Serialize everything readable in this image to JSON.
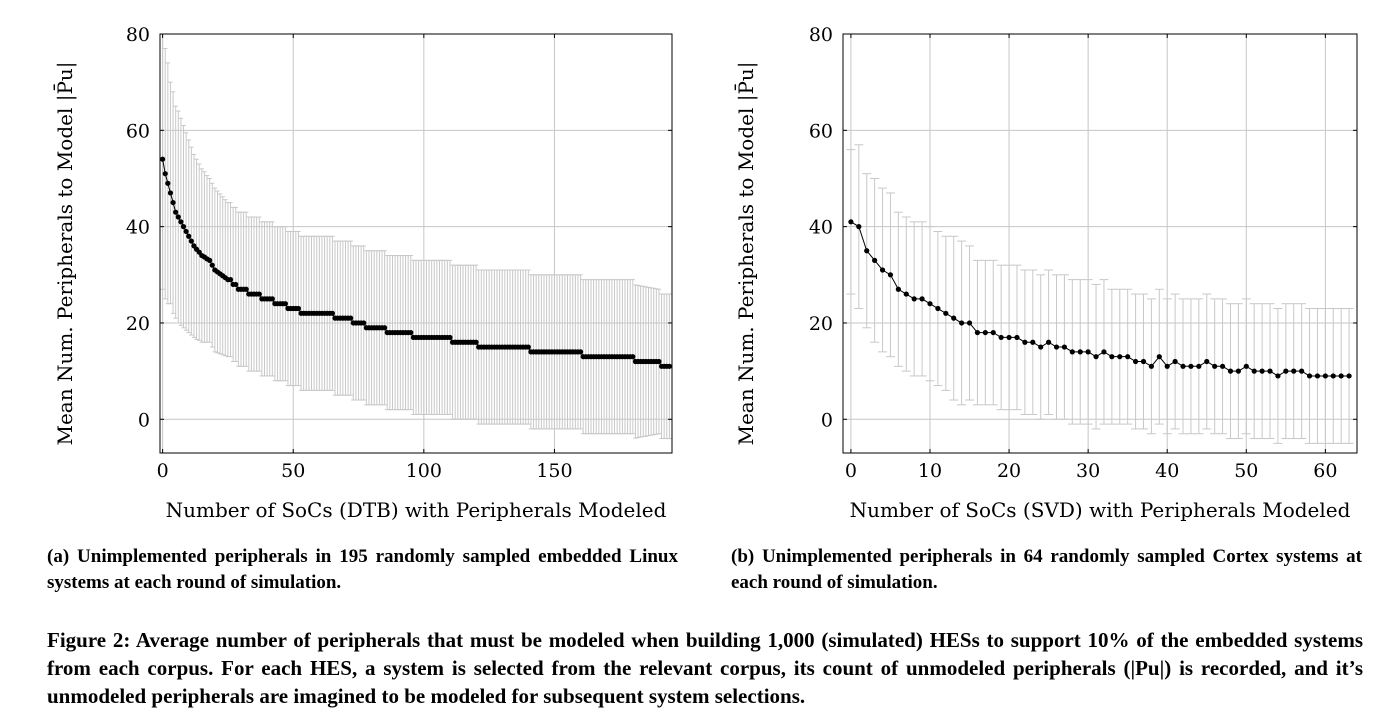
{
  "chart_data": [
    {
      "type": "line",
      "ylabel": "Mean Num. Peripherals to Model |P̄u|",
      "xlabel": "Number of SoCs (DTB) with Peripherals Modeled",
      "xlim": [
        -1,
        195
      ],
      "ylim": [
        -7,
        80
      ],
      "xticks": [
        0,
        50,
        100,
        150
      ],
      "yticks": [
        0,
        20,
        40,
        60,
        80
      ],
      "grid": true,
      "error_bars": true,
      "series_color": "#000000",
      "error_bar_color": "#c8c8c8",
      "keypoints": [
        [
          0,
          54,
          27
        ],
        [
          1,
          51,
          26
        ],
        [
          2,
          49,
          25
        ],
        [
          3,
          47,
          23
        ],
        [
          4,
          45,
          23
        ],
        [
          5,
          43,
          22
        ],
        [
          6,
          42,
          22
        ],
        [
          8,
          40,
          21
        ],
        [
          10,
          38,
          20
        ],
        [
          12,
          36,
          19
        ],
        [
          15,
          34,
          18
        ],
        [
          18,
          33,
          17
        ],
        [
          20,
          31,
          17
        ],
        [
          25,
          29,
          16
        ],
        [
          30,
          27,
          16
        ],
        [
          35,
          26,
          16
        ],
        [
          40,
          25,
          16
        ],
        [
          45,
          24,
          16
        ],
        [
          50,
          23,
          16
        ],
        [
          55,
          22,
          16
        ],
        [
          60,
          22,
          16
        ],
        [
          70,
          21,
          16
        ],
        [
          80,
          19,
          16
        ],
        [
          90,
          18,
          16
        ],
        [
          100,
          17,
          16
        ],
        [
          110,
          16.5,
          16
        ],
        [
          120,
          15.5,
          16
        ],
        [
          130,
          15,
          16
        ],
        [
          140,
          14.5,
          16
        ],
        [
          150,
          14,
          16
        ],
        [
          160,
          13.5,
          16
        ],
        [
          170,
          13,
          16
        ],
        [
          180,
          12.5,
          16
        ],
        [
          190,
          11.5,
          15
        ],
        [
          194,
          11,
          15
        ]
      ],
      "caption": "(a) Unimplemented peripherals in 195 randomly sampled embedded Linux systems at each round of simulation."
    },
    {
      "type": "line",
      "ylabel": "Mean Num. Peripherals to Model |P̄u|",
      "xlabel": "Number of SoCs (SVD) with Peripherals Modeled",
      "xlim": [
        -1,
        64
      ],
      "ylim": [
        -7,
        80
      ],
      "xticks": [
        0,
        10,
        20,
        30,
        40,
        50,
        60
      ],
      "yticks": [
        0,
        20,
        40,
        60,
        80
      ],
      "grid": true,
      "error_bars": true,
      "series_color": "#000000",
      "error_bar_color": "#c8c8c8",
      "x": [
        0,
        1,
        2,
        3,
        4,
        5,
        6,
        7,
        8,
        9,
        10,
        11,
        12,
        13,
        14,
        15,
        16,
        17,
        18,
        19,
        20,
        21,
        22,
        23,
        24,
        25,
        26,
        27,
        28,
        29,
        30,
        31,
        32,
        33,
        34,
        35,
        36,
        37,
        38,
        39,
        40,
        41,
        42,
        43,
        44,
        45,
        46,
        47,
        48,
        49,
        50,
        51,
        52,
        53,
        54,
        55,
        56,
        57,
        58,
        59,
        60,
        61,
        62,
        63
      ],
      "y": [
        41,
        40,
        35,
        33,
        31,
        30,
        27,
        26,
        25,
        25,
        24,
        23,
        22,
        21,
        20,
        20,
        18,
        18,
        18,
        17,
        17,
        17,
        16,
        16,
        15,
        16,
        15,
        15,
        14,
        14,
        14,
        13,
        14,
        13,
        13,
        13,
        12,
        12,
        11,
        13,
        11,
        12,
        11,
        11,
        11,
        12,
        11,
        11,
        10,
        10,
        11,
        10,
        10,
        10,
        9,
        10,
        10,
        10,
        9,
        9,
        9,
        9,
        9,
        9
      ],
      "err": [
        15,
        17,
        16,
        17,
        17,
        17,
        16,
        16,
        16,
        16,
        16,
        16,
        16,
        17,
        17,
        16,
        15,
        15,
        15,
        15,
        15,
        15,
        15,
        15,
        15,
        15,
        15,
        15,
        15,
        15,
        15,
        15,
        15,
        14,
        14,
        14,
        14,
        14,
        14,
        14,
        14,
        14,
        14,
        14,
        14,
        14,
        14,
        14,
        14,
        14,
        14,
        14,
        14,
        14,
        14,
        14,
        14,
        14,
        14,
        14,
        14,
        14,
        14,
        14
      ],
      "caption": "(b) Unimplemented peripherals in 64 randomly sampled Cortex systems at each round of simulation."
    }
  ],
  "figure_caption": "Figure 2: Average number of peripherals that must be modeled when building 1,000 (simulated) HESs to support 10% of the embedded systems from each corpus. For each HES, a system is selected from the relevant corpus, its count of unmodeled peripherals (|Pu|) is recorded, and it’s unmodeled peripherals are imagined to be modeled for subsequent system selections."
}
